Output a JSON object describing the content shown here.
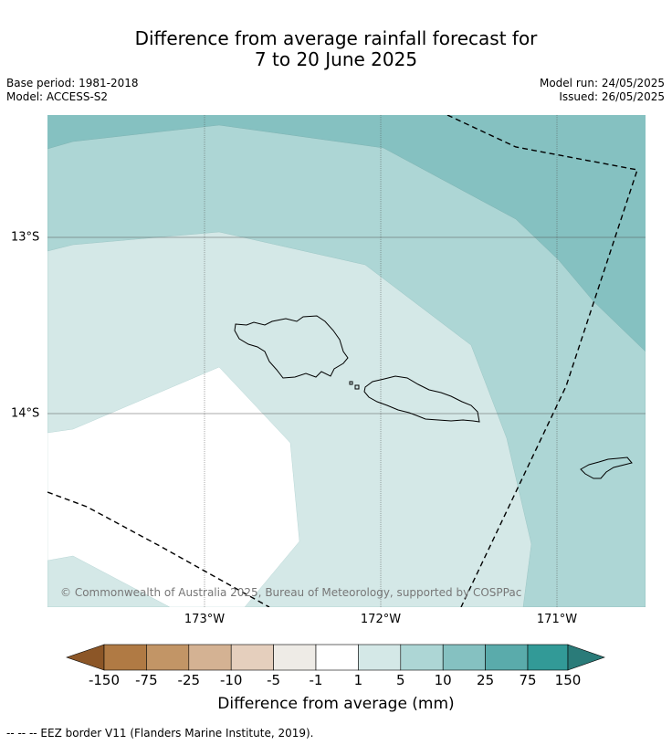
{
  "title_line1": "Difference from average rainfall forecast for",
  "title_line2": "7 to 20 June 2025",
  "base_period": "Base period: 1981-2018",
  "model": "Model: ACCESS-S2",
  "model_run": "Model run: 24/05/2025",
  "issued": "Issued: 26/05/2025",
  "copyright": "© Commonwealth of Australia 2025, Bureau of Meteorology, supported by COSPPac",
  "lon_labels": [
    "173°W",
    "172°W",
    "171°W"
  ],
  "lat_labels": [
    "13°S",
    "14°S"
  ],
  "colorbar": {
    "ticks": [
      "-150",
      "-75",
      "-25",
      "-10",
      "-5",
      "-1",
      "1",
      "5",
      "10",
      "25",
      "75",
      "150"
    ],
    "label": "Difference from average (mm)",
    "colors": {
      "below_min": "#8c5627",
      "b1": "#b07a44",
      "b2": "#c29566",
      "b3": "#d4b293",
      "b4": "#e5cfbd",
      "b5": "#eeebe6",
      "b6": "#ffffff",
      "b7": "#d4e8e7",
      "b8": "#add6d5",
      "b9": "#85c1c1",
      "b10": "#5aabab",
      "b11": "#329a97",
      "above_max": "#2a7b79"
    }
  },
  "footnote": "--  --  -- EEZ border V11 (Flanders Marine Institute, 2019)."
}
